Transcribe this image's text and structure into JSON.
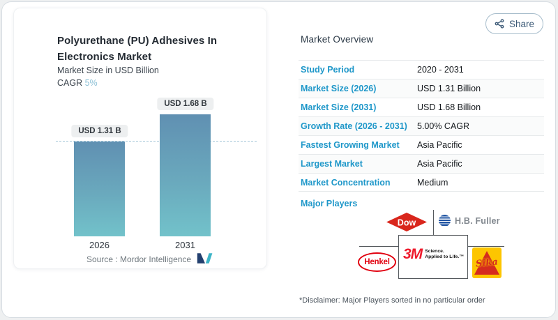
{
  "share": {
    "label": "Share"
  },
  "chart_card": {
    "title": "Polyurethane (PU) Adhesives In Electronics Market",
    "subtitle": "Market Size in USD Billion",
    "cagr_label": "CAGR",
    "cagr_value": "5%",
    "source_label": "Source :",
    "source_value": "Mordor Intelligence"
  },
  "chart_data": {
    "type": "bar",
    "title": "Polyurethane (PU) Adhesives In Electronics Market",
    "ylabel": "Market Size in USD Billion",
    "categories": [
      "2026",
      "2031"
    ],
    "values": [
      1.31,
      1.68
    ],
    "bar_labels": [
      "USD 1.31 B",
      "USD 1.68 B"
    ],
    "unit": "USD Billion",
    "cagr": "5%",
    "ylim": [
      0,
      1.9
    ],
    "reference_line": 1.31,
    "grid": false,
    "legend": false
  },
  "overview": {
    "title": "Market Overview",
    "rows": [
      {
        "label": "Study Period",
        "value": "2020 - 2031"
      },
      {
        "label": "Market Size (2026)",
        "value": "USD 1.31 Billion"
      },
      {
        "label": "Market Size (2031)",
        "value": "USD 1.68 Billion"
      },
      {
        "label": "Growth Rate (2026 - 2031)",
        "value": "5.00% CAGR"
      },
      {
        "label": "Fastest Growing Market",
        "value": "Asia Pacific"
      },
      {
        "label": "Largest Market",
        "value": "Asia Pacific"
      },
      {
        "label": "Market Concentration",
        "value": "Medium"
      }
    ],
    "major_players_label": "Major Players",
    "players": {
      "dow": "Dow",
      "hb_fuller": "H.B. Fuller",
      "henkel": "Henkel",
      "mmm": "3M",
      "mmm_tagline1": "Science.",
      "mmm_tagline2": "Applied to Life.™",
      "sika": "Sika"
    },
    "disclaimer": "*Disclaimer: Major Players sorted in no particular order"
  },
  "colors": {
    "row_label_blue": "#1e97c9",
    "bar_gradient_top": "#6090b2",
    "bar_gradient_bottom": "#72c2ca",
    "reference_dash": "#a3c6d8",
    "cagr_accent": "#8cc0d6",
    "share_text": "#3c5a77",
    "dow_red": "#d9261c",
    "henkel_red": "#e1000f",
    "mmm_red": "#ee1b2d",
    "sika_yellow": "#fdc500",
    "sika_red": "#d52b1e",
    "hb_fuller_blue": "#2155a3"
  }
}
